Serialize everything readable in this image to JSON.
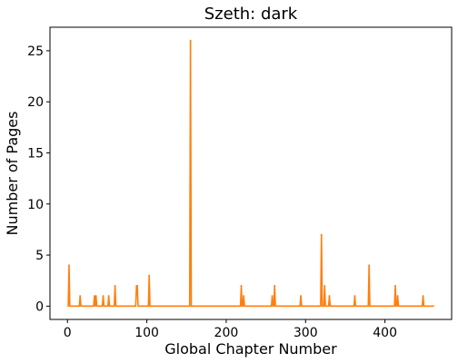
{
  "chart_data": {
    "type": "line",
    "title": "Szeth: dark",
    "xlabel": "Global Chapter Number",
    "ylabel": "Number of Pages",
    "xlim": [
      -22,
      484
    ],
    "ylim": [
      -1.3,
      27.3
    ],
    "xticks": [
      0,
      100,
      200,
      300,
      400
    ],
    "yticks": [
      0,
      5,
      10,
      15,
      20,
      25
    ],
    "grid": false,
    "legend": "none",
    "series": [
      {
        "color": "#ff7f0e",
        "x_range": [
          0,
          462
        ],
        "points": [
          [
            2,
            4
          ],
          [
            16,
            1
          ],
          [
            34,
            1
          ],
          [
            36,
            1
          ],
          [
            45,
            1
          ],
          [
            52,
            1
          ],
          [
            60,
            2
          ],
          [
            87,
            2
          ],
          [
            88,
            2
          ],
          [
            103,
            3
          ],
          [
            155,
            26
          ],
          [
            219,
            2
          ],
          [
            222,
            1
          ],
          [
            258,
            1
          ],
          [
            261,
            2
          ],
          [
            294,
            1
          ],
          [
            320,
            7
          ],
          [
            324,
            2
          ],
          [
            330,
            1
          ],
          [
            362,
            1
          ],
          [
            380,
            4
          ],
          [
            413,
            2
          ],
          [
            416,
            1
          ],
          [
            448,
            1
          ]
        ]
      }
    ]
  }
}
